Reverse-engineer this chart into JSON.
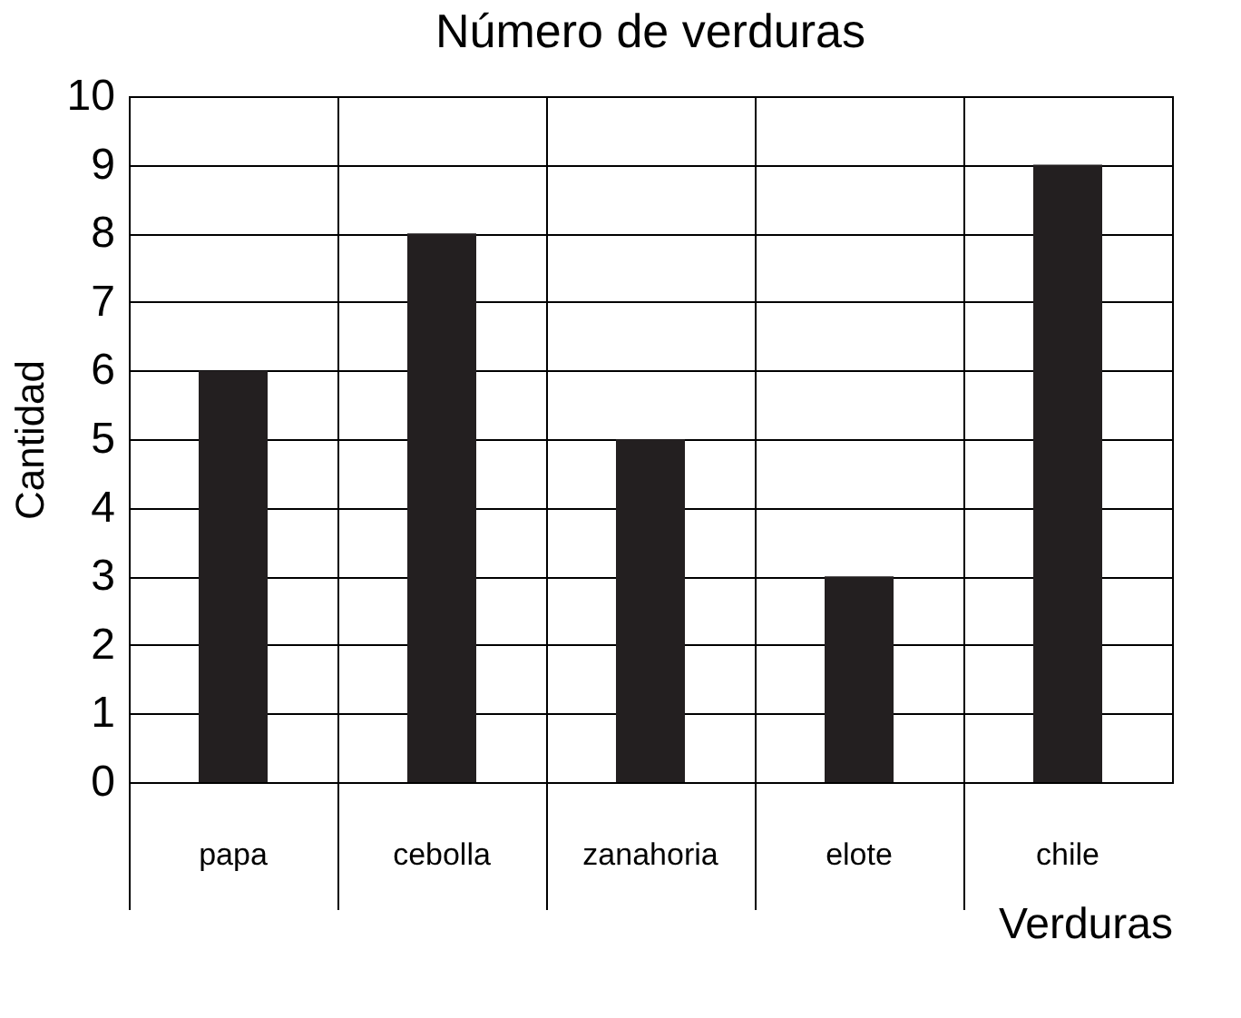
{
  "chart_data": {
    "type": "bar",
    "title": "Número de verduras",
    "xlabel": "Verduras",
    "ylabel": "Cantidad",
    "categories": [
      "papa",
      "cebolla",
      "zanahoria",
      "elote",
      "chile"
    ],
    "values": [
      6,
      8,
      5,
      3,
      9
    ],
    "color": "#231f20",
    "ylim": [
      0,
      10
    ],
    "yticks": [
      0,
      1,
      2,
      3,
      4,
      5,
      6,
      7,
      8,
      9,
      10
    ],
    "grid": true
  }
}
